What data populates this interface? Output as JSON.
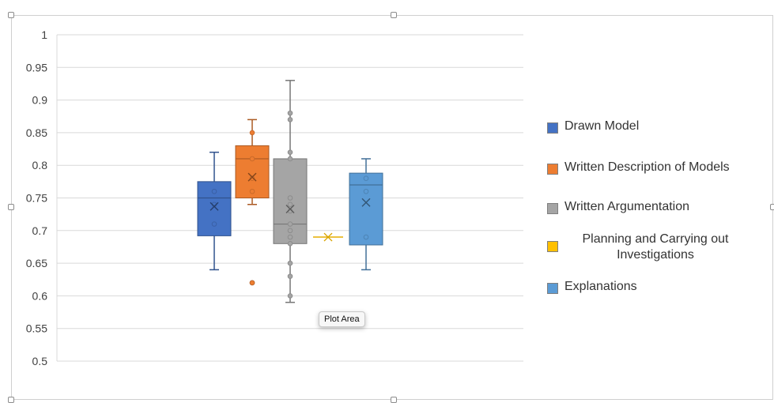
{
  "chart_data": {
    "type": "box",
    "y_ticks": [
      "1",
      "0.95",
      "0.9",
      "0.85",
      "0.8",
      "0.75",
      "0.7",
      "0.65",
      "0.6",
      "0.55",
      "0.5"
    ],
    "ylim": [
      0.5,
      1.0
    ],
    "grid": true,
    "legend_position": "right",
    "series": [
      {
        "name": "Drawn Model",
        "color": "#4472C4",
        "min": 0.64,
        "q1": 0.692,
        "median": 0.75,
        "q3": 0.775,
        "max": 0.82,
        "mean": 0.737,
        "points": [
          0.76,
          0.74,
          0.71
        ],
        "outliers": []
      },
      {
        "name": "Written Description of Models",
        "color": "#ED7D31",
        "min": 0.74,
        "q1": 0.75,
        "median": 0.81,
        "q3": 0.83,
        "max": 0.87,
        "mean": 0.782,
        "points": [
          0.85,
          0.81,
          0.78,
          0.76
        ],
        "outliers": [
          0.62
        ]
      },
      {
        "name": "Written Argumentation",
        "color": "#A5A5A5",
        "min": 0.59,
        "q1": 0.68,
        "median": 0.71,
        "q3": 0.81,
        "max": 0.93,
        "mean": 0.733,
        "points": [
          0.88,
          0.87,
          0.82,
          0.81,
          0.75,
          0.74,
          0.73,
          0.71,
          0.7,
          0.69,
          0.68,
          0.65,
          0.63,
          0.6
        ],
        "outliers": []
      },
      {
        "name": "Planning and Carrying out Investigations",
        "color": "#FFC000",
        "min": 0.69,
        "q1": 0.69,
        "median": 0.69,
        "q3": 0.69,
        "max": 0.69,
        "mean": 0.69,
        "points": [],
        "outliers": []
      },
      {
        "name": "Explanations",
        "color": "#5B9BD5",
        "min": 0.64,
        "q1": 0.678,
        "median": 0.77,
        "q3": 0.788,
        "max": 0.81,
        "mean": 0.743,
        "points": [
          0.78,
          0.76,
          0.69
        ],
        "outliers": []
      }
    ]
  },
  "legend": {
    "items": [
      {
        "label": "Drawn Model",
        "color": "#4472C4"
      },
      {
        "label": "Written Description of Models",
        "color": "#ED7D31"
      },
      {
        "label": "Written Argumentation",
        "color": "#A5A5A5"
      },
      {
        "label": "Planning and Carrying out Investigations",
        "color": "#FFC000"
      },
      {
        "label": "Explanations",
        "color": "#5B9BD5"
      }
    ]
  },
  "tooltip": {
    "text": "Plot Area"
  },
  "colors": {
    "gridline": "#d9d9d9",
    "axis_text": "#404040",
    "frame": "#cfcfcf"
  }
}
